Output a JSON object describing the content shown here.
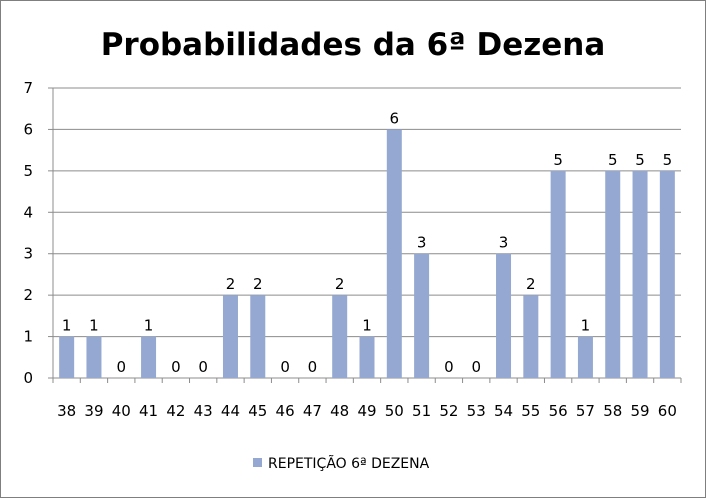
{
  "chart_data": {
    "type": "bar",
    "title": "Probabilidades da 6ª Dezena",
    "xlabel": "",
    "ylabel": "",
    "ylim": [
      0,
      7
    ],
    "yticks": [
      0,
      1,
      2,
      3,
      4,
      5,
      6,
      7
    ],
    "grid": true,
    "legend_position": "bottom",
    "categories": [
      "38",
      "39",
      "40",
      "41",
      "42",
      "43",
      "44",
      "45",
      "46",
      "47",
      "48",
      "49",
      "50",
      "51",
      "52",
      "53",
      "54",
      "55",
      "56",
      "57",
      "58",
      "59",
      "60"
    ],
    "series": [
      {
        "name": "REPETIÇÃO 6ª DEZENA",
        "color": "#94a8d2",
        "values": [
          1,
          1,
          0,
          1,
          0,
          0,
          2,
          2,
          0,
          0,
          2,
          1,
          6,
          3,
          0,
          0,
          3,
          2,
          5,
          1,
          5,
          5,
          5
        ]
      }
    ]
  }
}
